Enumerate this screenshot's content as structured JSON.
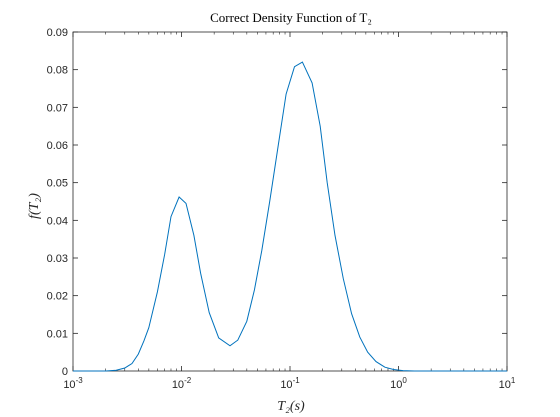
{
  "chart_data": {
    "type": "line",
    "title": "Correct Density Function of T₂",
    "xlabel": "T₂(s)",
    "ylabel": "f(T₂)",
    "xscale": "log",
    "xlim": [
      0.001,
      10
    ],
    "ylim": [
      0,
      0.09
    ],
    "grid": false,
    "xtick_values": [
      0.001,
      0.01,
      0.1,
      1,
      10
    ],
    "xtick_labels": [
      {
        "base": "10",
        "exp": "-3"
      },
      {
        "base": "10",
        "exp": "-2"
      },
      {
        "base": "10",
        "exp": "-1"
      },
      {
        "base": "10",
        "exp": "0"
      },
      {
        "base": "10",
        "exp": "1"
      }
    ],
    "ytick_values": [
      0,
      0.01,
      0.02,
      0.03,
      0.04,
      0.05,
      0.06,
      0.07,
      0.08,
      0.09
    ],
    "ytick_labels": [
      "0",
      "0.01",
      "0.02",
      "0.03",
      "0.04",
      "0.05",
      "0.06",
      "0.07",
      "0.08",
      "0.09"
    ],
    "series": [
      {
        "color": "#0072BD",
        "x": [
          0.001,
          0.0015,
          0.002,
          0.0025,
          0.003,
          0.0035,
          0.004,
          0.0045,
          0.005,
          0.006,
          0.007,
          0.008,
          0.0095,
          0.011,
          0.013,
          0.015,
          0.018,
          0.022,
          0.028,
          0.033,
          0.04,
          0.047,
          0.055,
          0.065,
          0.078,
          0.092,
          0.11,
          0.13,
          0.16,
          0.19,
          0.22,
          0.26,
          0.31,
          0.37,
          0.44,
          0.52,
          0.62,
          0.75,
          0.9,
          1.1,
          1.4,
          1.8,
          2.5,
          4,
          10
        ],
        "y": [
          0,
          0,
          0,
          0.0002,
          0.0008,
          0.002,
          0.0045,
          0.008,
          0.0115,
          0.021,
          0.031,
          0.041,
          0.0462,
          0.0445,
          0.036,
          0.026,
          0.0155,
          0.0088,
          0.0067,
          0.0082,
          0.0132,
          0.0215,
          0.032,
          0.045,
          0.06,
          0.0735,
          0.0808,
          0.082,
          0.0765,
          0.065,
          0.05,
          0.036,
          0.0245,
          0.0152,
          0.009,
          0.005,
          0.0025,
          0.001,
          0.0004,
          0.0001,
          0,
          0,
          0,
          0,
          0
        ]
      }
    ]
  }
}
